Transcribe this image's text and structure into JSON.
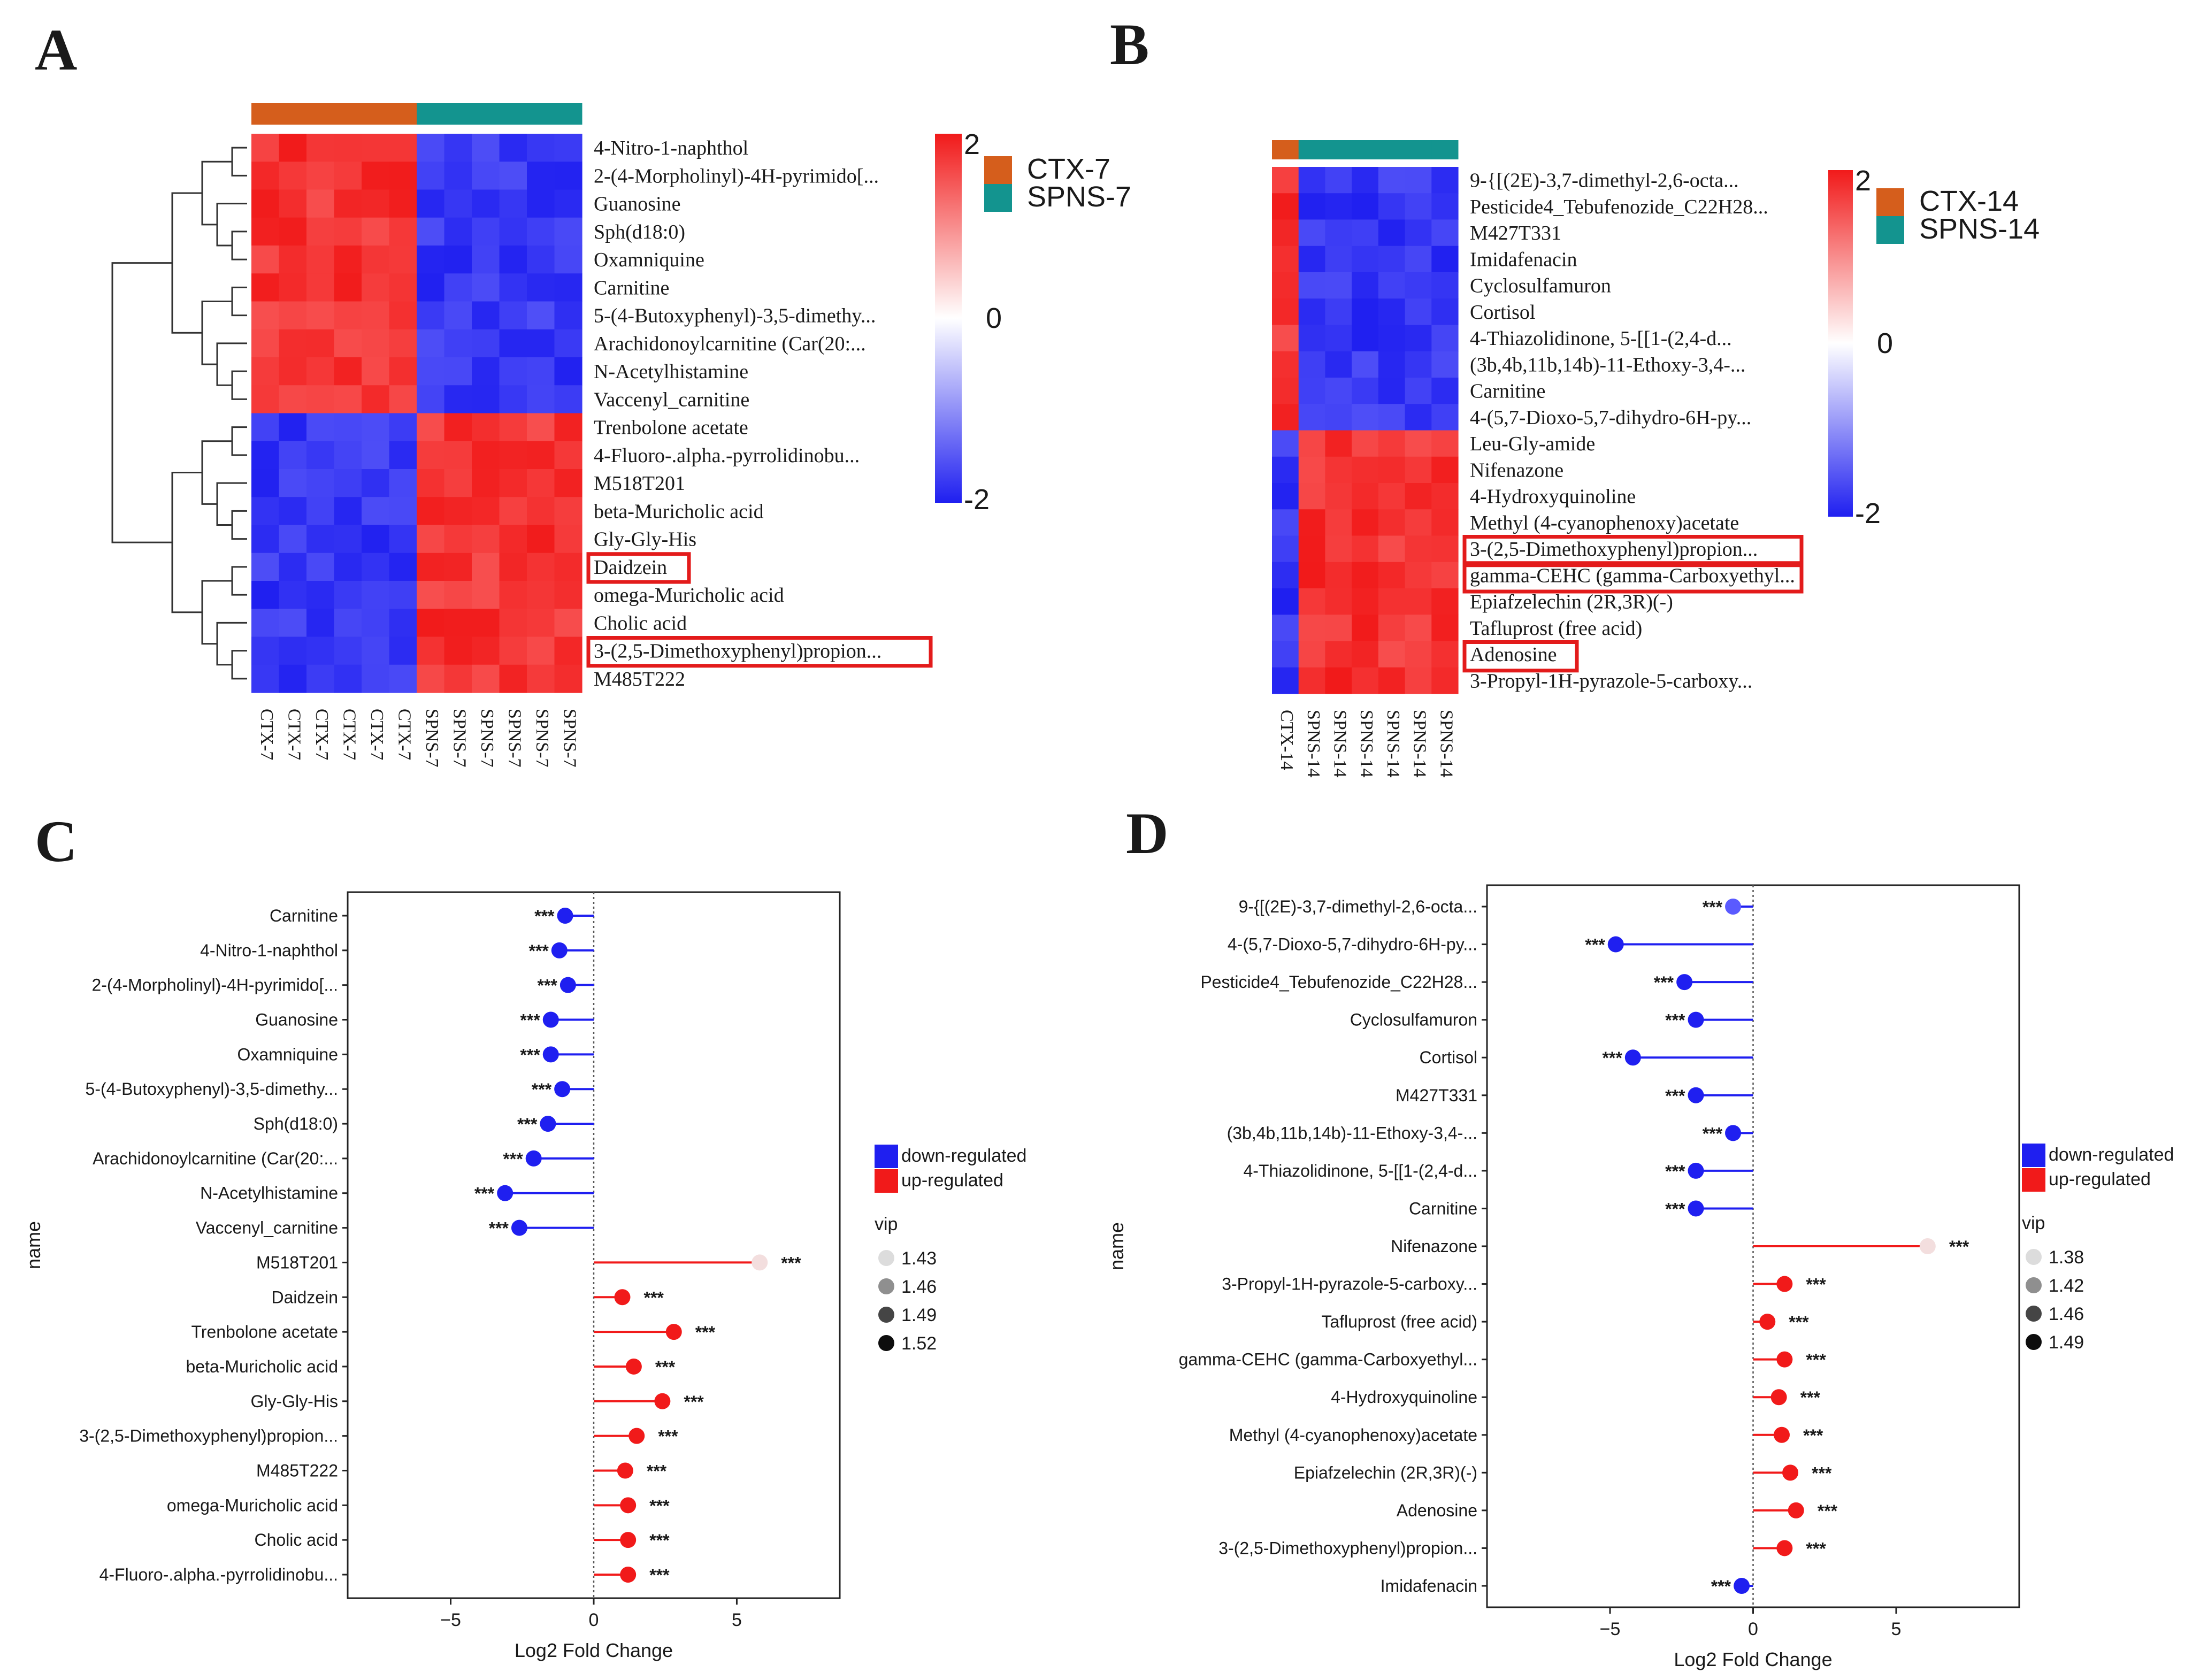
{
  "panels": [
    {
      "letter": "A"
    },
    {
      "letter": "B"
    },
    {
      "letter": "C"
    },
    {
      "letter": "D"
    }
  ],
  "colors": {
    "red": "#f11a1a",
    "blue": "#1f1ff0",
    "white": "#ffffff",
    "ctx": "#d55e1c",
    "spns": "#13948f",
    "highlight": "#e31b1b"
  },
  "chart_data": [
    {
      "type": "heatmap",
      "panel": "A",
      "groups": [
        {
          "name": "CTX-7",
          "color": "#d55e1c"
        },
        {
          "name": "SPNS-7",
          "color": "#13948f"
        }
      ],
      "columns": [
        "CTX-7",
        "CTX-7",
        "CTX-7",
        "CTX-7",
        "CTX-7",
        "CTX-7",
        "SPNS-7",
        "SPNS-7",
        "SPNS-7",
        "SPNS-7",
        "SPNS-7",
        "SPNS-7"
      ],
      "rows": [
        "4-Nitro-1-naphthol",
        "2-(4-Morpholinyl)-4H-pyrimido[...",
        "Guanosine",
        "Sph(d18:0)",
        "Oxamniquine",
        "Carnitine",
        "5-(4-Butoxyphenyl)-3,5-dimethy...",
        "Arachidonoylcarnitine (Car(20:...",
        "N-Acetylhistamine",
        "Vaccenyl_carnitine",
        "Trenbolone acetate",
        "4-Fluoro-.alpha.-pyrrolidinobu...",
        "M518T201",
        "beta-Muricholic acid",
        "Gly-Gly-His",
        "Daidzein",
        "omega-Muricholic acid",
        "Cholic acid",
        "3-(2,5-Dimethoxyphenyl)propion...",
        "M485T222"
      ],
      "row_signs": [
        1,
        1,
        1,
        1,
        1,
        1,
        1,
        1,
        1,
        1,
        -1,
        -1,
        -1,
        -1,
        -1,
        -1,
        -1,
        -1,
        -1,
        -1
      ],
      "highlighted_rows": [
        "Daidzein",
        "3-(2,5-Dimethoxyphenyl)propion..."
      ],
      "scale": {
        "max": "2",
        "mid": "0",
        "min": "-2"
      }
    },
    {
      "type": "heatmap",
      "panel": "B",
      "groups": [
        {
          "name": "CTX-14",
          "color": "#d55e1c"
        },
        {
          "name": "SPNS-14",
          "color": "#13948f"
        }
      ],
      "columns": [
        "CTX-14",
        "SPNS-14",
        "SPNS-14",
        "SPNS-14",
        "SPNS-14",
        "SPNS-14",
        "SPNS-14"
      ],
      "rows": [
        "9-{[(2E)-3,7-dimethyl-2,6-octa...",
        "Pesticide4_Tebufenozide_C22H28...",
        "M427T331",
        "Imidafenacin",
        "Cyclosulfamuron",
        "Cortisol",
        "4-Thiazolidinone, 5-[[1-(2,4-d...",
        "(3b,4b,11b,14b)-11-Ethoxy-3,4-...",
        "Carnitine",
        "4-(5,7-Dioxo-5,7-dihydro-6H-py...",
        "Leu-Gly-amide",
        "Nifenazone",
        "4-Hydroxyquinoline",
        "Methyl (4-cyanophenoxy)acetate",
        "3-(2,5-Dimethoxyphenyl)propion...",
        "gamma-CEHC (gamma-Carboxyethyl...",
        "Epiafzelechin (2R,3R)(-)",
        "Tafluprost (free acid)",
        "Adenosine",
        "3-Propyl-1H-pyrazole-5-carboxy..."
      ],
      "row_signs": [
        1,
        1,
        1,
        1,
        1,
        1,
        1,
        1,
        1,
        1,
        -1,
        -1,
        -1,
        -1,
        -1,
        -1,
        -1,
        -1,
        -1,
        -1
      ],
      "highlighted_rows": [
        "3-(2,5-Dimethoxyphenyl)propion...",
        "gamma-CEHC (gamma-Carboxyethyl...",
        "Adenosine"
      ],
      "scale": {
        "max": "2",
        "mid": "0",
        "min": "-2"
      }
    },
    {
      "type": "scatter",
      "subtype": "lollipop",
      "panel": "C",
      "xlabel": "Log2 Fold Change",
      "ylabel": "name",
      "xlim": [
        -8.6,
        8.6
      ],
      "xticks": [
        -5,
        0,
        5
      ],
      "stars": "***",
      "legend": {
        "down": "down-regulated",
        "up": "up-regulated",
        "vip_title": "vip",
        "vip_values": [
          "1.43",
          "1.46",
          "1.49",
          "1.52"
        ]
      },
      "items": [
        {
          "name": "Carnitine",
          "value": -1.0,
          "shade": 0
        },
        {
          "name": "4-Nitro-1-naphthol",
          "value": -1.2,
          "shade": 0
        },
        {
          "name": "2-(4-Morpholinyl)-4H-pyrimido[...",
          "value": -0.9,
          "shade": 0
        },
        {
          "name": "Guanosine",
          "value": -1.5,
          "shade": 0
        },
        {
          "name": "Oxamniquine",
          "value": -1.5,
          "shade": 0
        },
        {
          "name": "5-(4-Butoxyphenyl)-3,5-dimethy...",
          "value": -1.1,
          "shade": 0
        },
        {
          "name": "Sph(d18:0)",
          "value": -1.6,
          "shade": 0
        },
        {
          "name": "Arachidonoylcarnitine (Car(20:...",
          "value": -2.1,
          "shade": 0
        },
        {
          "name": "N-Acetylhistamine",
          "value": -3.1,
          "shade": 0
        },
        {
          "name": "Vaccenyl_carnitine",
          "value": -2.6,
          "shade": 0
        },
        {
          "name": "M518T201",
          "value": 5.8,
          "shade": 1
        },
        {
          "name": "Daidzein",
          "value": 1.0,
          "shade": 0
        },
        {
          "name": "Trenbolone acetate",
          "value": 2.8,
          "shade": 0
        },
        {
          "name": "beta-Muricholic acid",
          "value": 1.4,
          "shade": 0
        },
        {
          "name": "Gly-Gly-His",
          "value": 2.4,
          "shade": 0
        },
        {
          "name": "3-(2,5-Dimethoxyphenyl)propion...",
          "value": 1.5,
          "shade": 0
        },
        {
          "name": "M485T222",
          "value": 1.1,
          "shade": 0
        },
        {
          "name": "omega-Muricholic acid",
          "value": 1.2,
          "shade": 0
        },
        {
          "name": "Cholic acid",
          "value": 1.2,
          "shade": 0
        },
        {
          "name": "4-Fluoro-.alpha.-pyrrolidinobu...",
          "value": 1.2,
          "shade": 0
        }
      ]
    },
    {
      "type": "scatter",
      "subtype": "lollipop",
      "panel": "D",
      "xlabel": "Log2 Fold Change",
      "ylabel": "name",
      "xlim": [
        -9.3,
        9.3
      ],
      "xticks": [
        -5,
        0,
        5
      ],
      "stars": "***",
      "legend": {
        "down": "down-regulated",
        "up": "up-regulated",
        "vip_title": "vip",
        "vip_values": [
          "1.38",
          "1.42",
          "1.46",
          "1.49"
        ]
      },
      "items": [
        {
          "name": "9-{[(2E)-3,7-dimethyl-2,6-octa...",
          "value": -0.7,
          "shade": 0.6
        },
        {
          "name": "4-(5,7-Dioxo-5,7-dihydro-6H-py...",
          "value": -4.8,
          "shade": 0
        },
        {
          "name": "Pesticide4_Tebufenozide_C22H28...",
          "value": -2.4,
          "shade": 0
        },
        {
          "name": "Cyclosulfamuron",
          "value": -2.0,
          "shade": 0
        },
        {
          "name": "Cortisol",
          "value": -4.2,
          "shade": 0
        },
        {
          "name": "M427T331",
          "value": -2.0,
          "shade": 0
        },
        {
          "name": "(3b,4b,11b,14b)-11-Ethoxy-3,4-...",
          "value": -0.7,
          "shade": 0
        },
        {
          "name": "4-Thiazolidinone, 5-[[1-(2,4-d...",
          "value": -2.0,
          "shade": 0
        },
        {
          "name": "Carnitine",
          "value": -2.0,
          "shade": 0
        },
        {
          "name": "Nifenazone",
          "value": 6.1,
          "shade": 1
        },
        {
          "name": "3-Propyl-1H-pyrazole-5-carboxy...",
          "value": 1.1,
          "shade": 0
        },
        {
          "name": "Tafluprost (free acid)",
          "value": 0.5,
          "shade": 0
        },
        {
          "name": "gamma-CEHC (gamma-Carboxyethyl...",
          "value": 1.1,
          "shade": 0
        },
        {
          "name": "4-Hydroxyquinoline",
          "value": 0.9,
          "shade": 0
        },
        {
          "name": "Methyl (4-cyanophenoxy)acetate",
          "value": 1.0,
          "shade": 0
        },
        {
          "name": "Epiafzelechin (2R,3R)(-)",
          "value": 1.3,
          "shade": 0
        },
        {
          "name": "Adenosine",
          "value": 1.5,
          "shade": 0
        },
        {
          "name": "3-(2,5-Dimethoxyphenyl)propion...",
          "value": 1.1,
          "shade": 0
        },
        {
          "name": "Imidafenacin",
          "value": -0.4,
          "shade": 0
        }
      ]
    }
  ]
}
